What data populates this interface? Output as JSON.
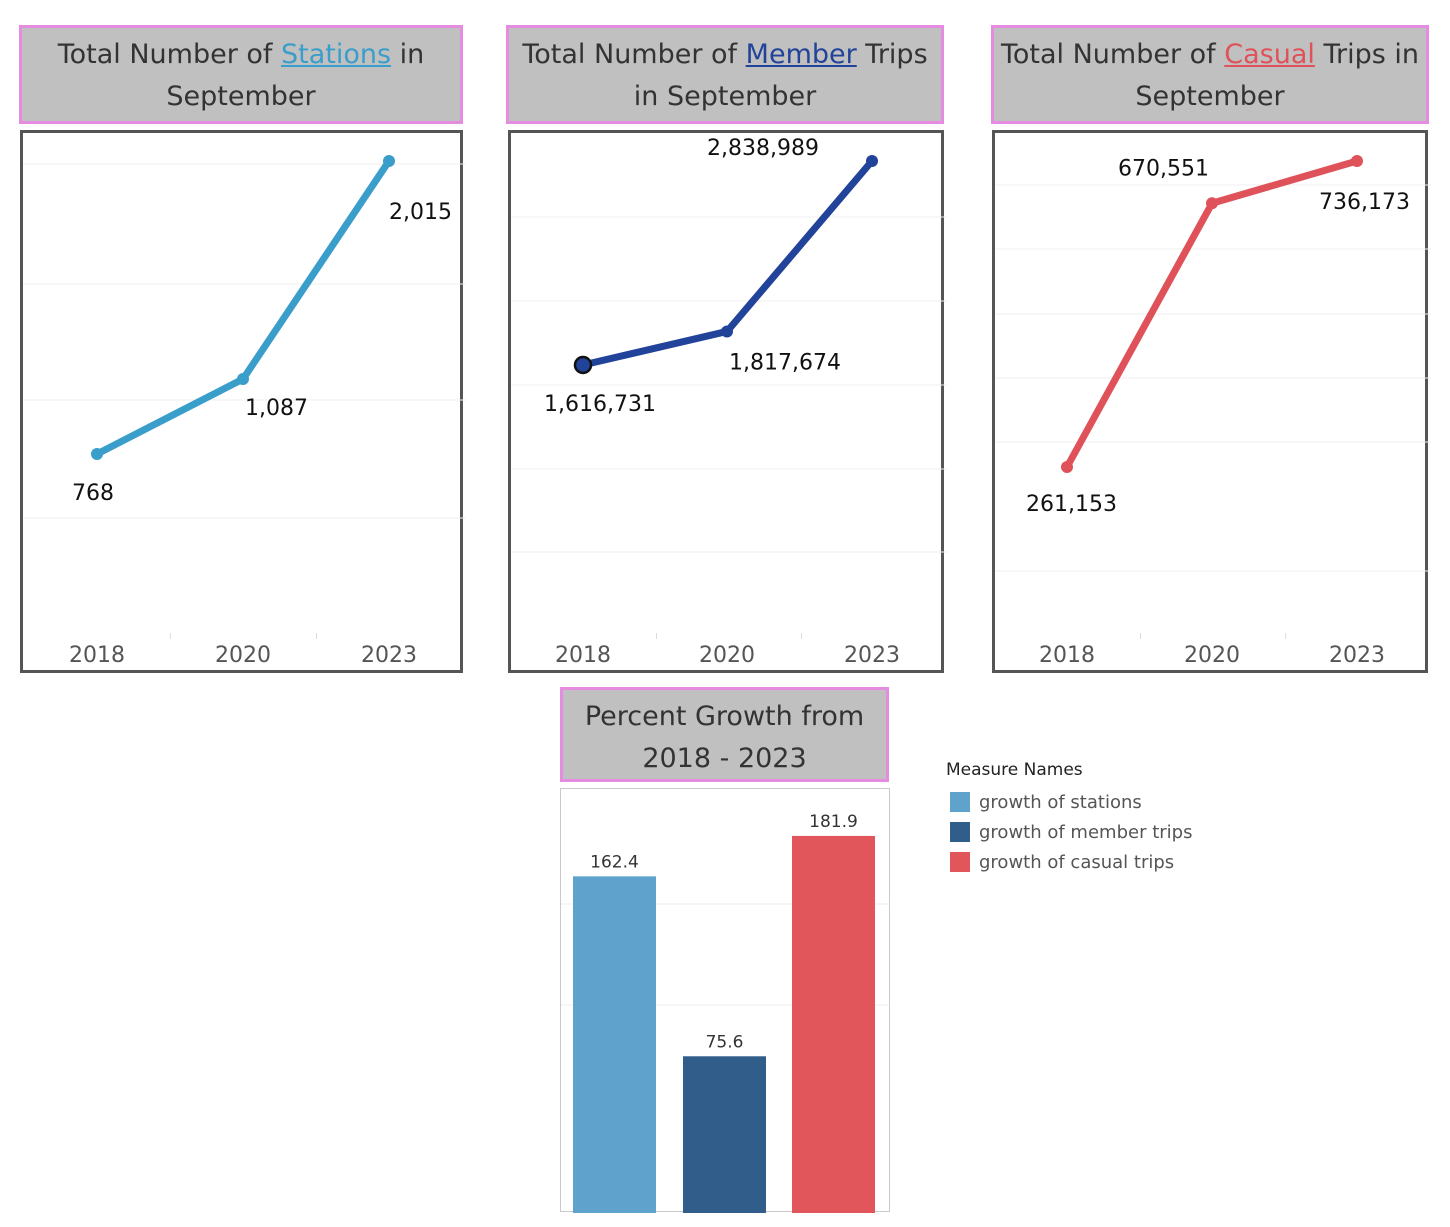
{
  "panels": [
    {
      "title_pre": "Total Number of ",
      "title_hl": "Stations",
      "title_post": " in September",
      "color": "#3a9ecb",
      "years": [
        "2018",
        "2020",
        "2023"
      ],
      "values": [
        768,
        1087,
        2015
      ],
      "labels": [
        "768",
        "1,087",
        "2,015"
      ]
    },
    {
      "title_pre": "Total Number of ",
      "title_hl": "Member",
      "title_post": " Trips in September",
      "color": "#22439a",
      "years": [
        "2018",
        "2020",
        "2023"
      ],
      "values": [
        1616731,
        1817674,
        2838989
      ],
      "labels": [
        "1,616,731",
        "1,817,674",
        "2,838,989"
      ]
    },
    {
      "title_pre": "Total Number of ",
      "title_hl": "Casual",
      "title_post": " Trips in September",
      "color": "#e05259",
      "years": [
        "2018",
        "2020",
        "2023"
      ],
      "values": [
        261153,
        670551,
        736173
      ],
      "labels": [
        "261,153",
        "670,551",
        "736,173"
      ]
    }
  ],
  "growth_title": "Percent Growth from 2018 - 2023",
  "legend": {
    "title": "Measure Names",
    "items": [
      {
        "label": "growth of stations",
        "color": "#5fa2cc"
      },
      {
        "label": "growth of member trips",
        "color": "#305d8a"
      },
      {
        "label": "growth of casual trips",
        "color": "#e1565b"
      }
    ]
  },
  "chart_data": [
    {
      "type": "line",
      "title": "Total Number of Stations in September",
      "x": [
        "2018",
        "2020",
        "2023"
      ],
      "series": [
        {
          "values": [
            768,
            1087,
            2015
          ]
        }
      ]
    },
    {
      "type": "line",
      "title": "Total Number of Member Trips in September",
      "x": [
        "2018",
        "2020",
        "2023"
      ],
      "series": [
        {
          "values": [
            1616731,
            1817674,
            2838989
          ]
        }
      ]
    },
    {
      "type": "line",
      "title": "Total Number of Casual Trips in September",
      "x": [
        "2018",
        "2020",
        "2023"
      ],
      "series": [
        {
          "values": [
            261153,
            670551,
            736173
          ]
        }
      ]
    },
    {
      "type": "bar",
      "title": "Percent Growth from 2018 - 2023",
      "categories": [
        "growth of stations",
        "growth of member trips",
        "growth of casual trips"
      ],
      "values": [
        162.4,
        75.6,
        181.9
      ],
      "labels": [
        "162.4",
        "75.6",
        "181.9"
      ],
      "legend": "right"
    }
  ]
}
